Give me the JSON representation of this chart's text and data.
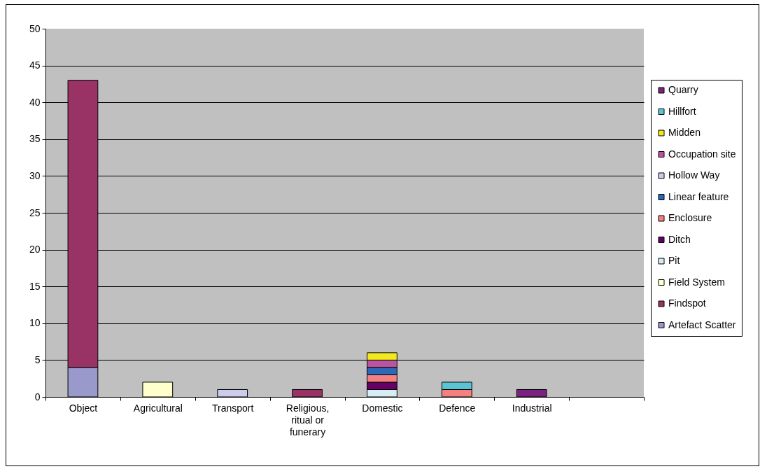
{
  "chart_data": {
    "type": "bar",
    "stacked": true,
    "categories": [
      "Object",
      "Agricultural",
      "Transport",
      "Religious, ritual or funerary",
      "Domestic",
      "Defence",
      "Industrial",
      null
    ],
    "series": [
      {
        "name": "Artefact Scatter",
        "color": "#9999cc",
        "values": [
          4,
          null,
          null,
          null,
          null,
          null,
          null,
          null
        ]
      },
      {
        "name": "Findspot",
        "color": "#993366",
        "values": [
          39,
          null,
          null,
          1,
          null,
          null,
          null,
          null
        ]
      },
      {
        "name": "Field System",
        "color": "#ffffcc",
        "values": [
          null,
          2,
          null,
          null,
          null,
          null,
          null,
          null
        ]
      },
      {
        "name": "Pit",
        "color": "#d6eef3",
        "values": [
          null,
          null,
          null,
          null,
          1,
          null,
          null,
          null
        ]
      },
      {
        "name": "Ditch",
        "color": "#660066",
        "values": [
          null,
          null,
          null,
          null,
          1,
          null,
          null,
          null
        ]
      },
      {
        "name": "Enclosure",
        "color": "#f58080",
        "values": [
          null,
          null,
          null,
          null,
          1,
          1,
          null,
          null
        ]
      },
      {
        "name": "Linear feature",
        "color": "#2e68b8",
        "values": [
          null,
          null,
          null,
          null,
          1,
          null,
          null,
          null
        ]
      },
      {
        "name": "Hollow Way",
        "color": "#ccccec",
        "values": [
          null,
          null,
          1,
          null,
          null,
          null,
          null,
          null
        ]
      },
      {
        "name": "Occupation site",
        "color": "#b955a0",
        "values": [
          null,
          null,
          null,
          null,
          1,
          null,
          null,
          null
        ]
      },
      {
        "name": "Midden",
        "color": "#f2e81e",
        "values": [
          null,
          null,
          null,
          null,
          1,
          null,
          null,
          null
        ]
      },
      {
        "name": "Hillfort",
        "color": "#5bc4d4",
        "values": [
          null,
          null,
          null,
          null,
          null,
          1,
          null,
          null
        ]
      },
      {
        "name": "Quarry",
        "color": "#7b2280",
        "values": [
          null,
          null,
          null,
          null,
          null,
          null,
          1,
          null
        ]
      }
    ],
    "ylim": [
      0,
      50
    ],
    "yticks": [
      0,
      5,
      10,
      15,
      20,
      25,
      30,
      35,
      40,
      45,
      50
    ],
    "grid": "y",
    "legend": "right"
  }
}
